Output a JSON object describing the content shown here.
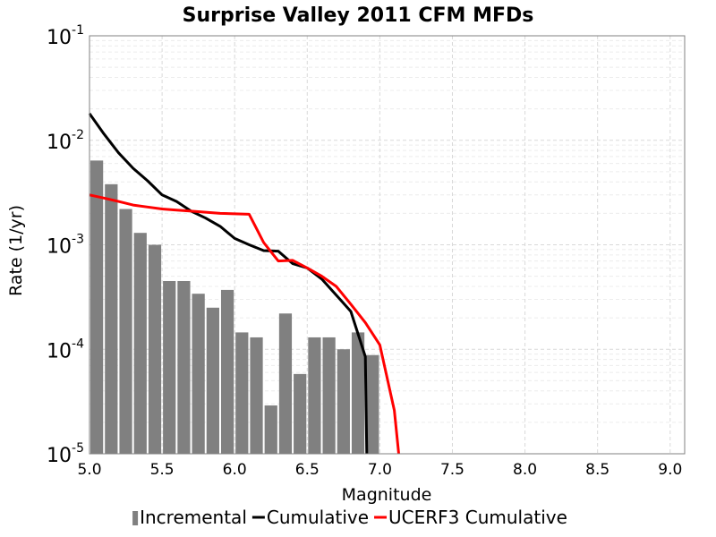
{
  "chart_data": {
    "type": "bar",
    "title": "Surprise Valley 2011 CFM MFDs",
    "xlabel": "Magnitude",
    "ylabel": "Rate (1/yr)",
    "xlim": [
      5.0,
      9.1
    ],
    "ylim": [
      1e-05,
      0.1
    ],
    "yscale": "log",
    "grid": true,
    "legend_position": "bottom",
    "x_ticks": [
      "5.0",
      "5.5",
      "6.0",
      "6.5",
      "7.0",
      "7.5",
      "8.0",
      "8.5",
      "9.0"
    ],
    "y_ticks": [
      {
        "base": "10",
        "exp": "-5"
      },
      {
        "base": "10",
        "exp": "-4"
      },
      {
        "base": "10",
        "exp": "-3"
      },
      {
        "base": "10",
        "exp": "-2"
      },
      {
        "base": "10",
        "exp": "-1"
      }
    ],
    "series": [
      {
        "name": "Incremental",
        "kind": "bar",
        "color": "#808080",
        "x": [
          5.05,
          5.15,
          5.25,
          5.35,
          5.45,
          5.55,
          5.65,
          5.75,
          5.85,
          5.95,
          6.05,
          6.15,
          6.25,
          6.35,
          6.45,
          6.55,
          6.65,
          6.75,
          6.85,
          6.95
        ],
        "y": [
          0.0064,
          0.0038,
          0.0022,
          0.0013,
          0.001,
          0.00045,
          0.00045,
          0.00034,
          0.00025,
          0.00037,
          0.000145,
          0.00013,
          2.9e-05,
          0.00022,
          5.8e-05,
          0.00013,
          0.00013,
          0.0001,
          0.000145,
          8.8e-05
        ]
      },
      {
        "name": "Cumulative",
        "kind": "line",
        "color": "#000000",
        "x": [
          5.0,
          5.1,
          5.2,
          5.3,
          5.4,
          5.5,
          5.6,
          5.7,
          5.8,
          5.9,
          6.0,
          6.1,
          6.2,
          6.3,
          6.4,
          6.5,
          6.6,
          6.7,
          6.8,
          6.9,
          6.91
        ],
        "y": [
          0.018,
          0.0115,
          0.0076,
          0.0054,
          0.0041,
          0.003,
          0.0026,
          0.0021,
          0.0018,
          0.0015,
          0.00115,
          0.001,
          0.00088,
          0.00087,
          0.00066,
          0.0006,
          0.00047,
          0.00033,
          0.00023,
          8.5e-05,
          1e-05
        ]
      },
      {
        "name": "UCERF3 Cumulative",
        "kind": "line",
        "color": "#ff0000",
        "x": [
          5.0,
          5.1,
          5.2,
          5.3,
          5.4,
          5.5,
          5.6,
          5.7,
          5.8,
          5.9,
          6.0,
          6.1,
          6.2,
          6.3,
          6.4,
          6.5,
          6.6,
          6.7,
          6.8,
          6.9,
          7.0,
          7.1,
          7.13
        ],
        "y": [
          0.003,
          0.0028,
          0.0026,
          0.0024,
          0.0023,
          0.0022,
          0.00215,
          0.0021,
          0.00205,
          0.002,
          0.00198,
          0.00196,
          0.00105,
          0.0007,
          0.00071,
          0.0006,
          0.0005,
          0.0004,
          0.00027,
          0.00018,
          0.00011,
          2.6e-05,
          1e-05
        ]
      }
    ]
  }
}
